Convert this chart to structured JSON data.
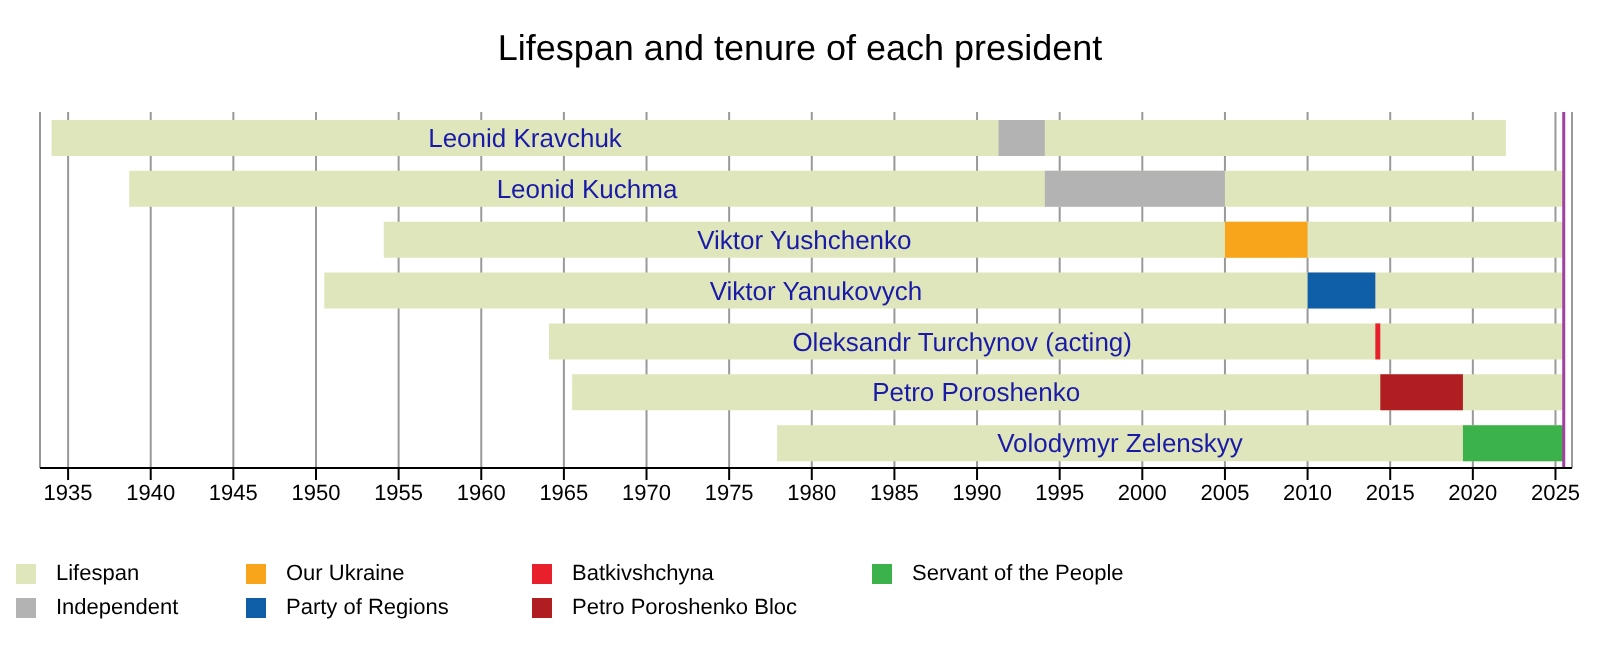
{
  "chart_data": {
    "type": "bar",
    "orientation": "horizontal",
    "title": "Lifespan and tenure of each president",
    "categories": [
      "Leonid Kravchuk",
      "Leonid Kuchma",
      "Viktor Yushchenko",
      "Viktor Yanukovych",
      "Oleksandr Turchynov (acting)",
      "Petro Poroshenko",
      "Volodymyr Zelenskyy"
    ],
    "series": [
      {
        "name": "Lifespan",
        "color": "#e0e6bc",
        "base": [
          1934.0,
          1938.7,
          1954.1,
          1950.5,
          1964.1,
          1965.5,
          1977.9
        ],
        "values": [
          88.0,
          86.8,
          71.4,
          75.0,
          61.4,
          60.0,
          47.6
        ]
      },
      {
        "name": "Independent",
        "color": "#b3b3b3",
        "base": [
          1991.3,
          1994.1,
          null,
          null,
          null,
          null,
          null
        ],
        "values": [
          2.8,
          10.9,
          null,
          null,
          null,
          null,
          null
        ]
      },
      {
        "name": "Our Ukraine",
        "color": "#f9a51b",
        "base": [
          null,
          null,
          2005.0,
          null,
          null,
          null,
          null
        ],
        "values": [
          null,
          null,
          5.0,
          null,
          null,
          null,
          null
        ]
      },
      {
        "name": "Party of Regions",
        "color": "#0f5ea8",
        "base": [
          null,
          null,
          null,
          2010.0,
          null,
          null,
          null
        ],
        "values": [
          null,
          null,
          null,
          4.1,
          null,
          null,
          null
        ]
      },
      {
        "name": "Batkivshchyna",
        "color": "#e8202c",
        "base": [
          null,
          null,
          null,
          null,
          2014.1,
          null,
          null
        ],
        "values": [
          null,
          null,
          null,
          null,
          0.3,
          null,
          null
        ]
      },
      {
        "name": "Petro Poroshenko Bloc",
        "color": "#b01e22",
        "base": [
          null,
          null,
          null,
          null,
          null,
          2014.4,
          null
        ],
        "values": [
          null,
          null,
          null,
          null,
          null,
          5.0,
          null
        ]
      },
      {
        "name": "Servant of the People",
        "color": "#3cb24a",
        "base": [
          null,
          null,
          null,
          null,
          null,
          null,
          2019.4
        ],
        "values": [
          null,
          null,
          null,
          null,
          null,
          null,
          6.1
        ]
      }
    ],
    "xlim": [
      1933.3,
      2026
    ],
    "xticks": [
      1935,
      1940,
      1945,
      1950,
      1955,
      1960,
      1965,
      1970,
      1975,
      1980,
      1985,
      1990,
      1995,
      2000,
      2005,
      2010,
      2015,
      2020,
      2025
    ],
    "ref_lines": [
      {
        "axis": "x",
        "value": 2025.5,
        "color": "#a040a0"
      }
    ],
    "grid": "x",
    "legend": "bottom",
    "tick_labels": "x"
  }
}
